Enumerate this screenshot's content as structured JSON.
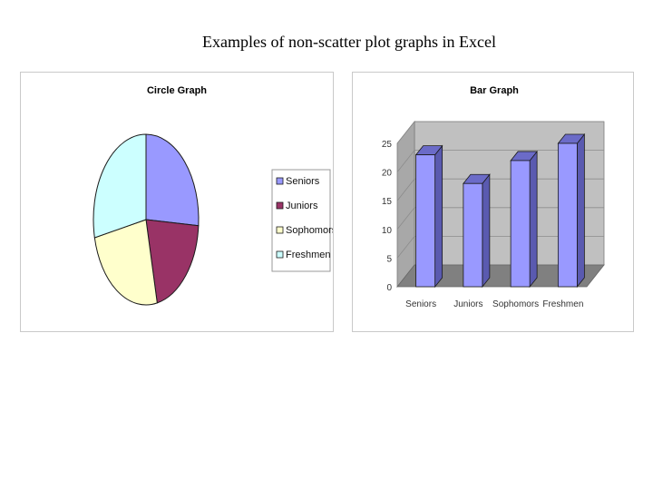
{
  "slide": {
    "title": "Examples of non-scatter plot graphs in Excel"
  },
  "chart_data": [
    {
      "type": "pie",
      "title": "Circle Graph",
      "categories": [
        "Seniors",
        "Juniors",
        "Sophomors",
        "Freshmen"
      ],
      "values": [
        23,
        18,
        22,
        25
      ],
      "colors": [
        "#9999ff",
        "#993366",
        "#ffffcc",
        "#ccffff"
      ],
      "legend_position": "right"
    },
    {
      "type": "bar",
      "title": "Bar Graph",
      "categories": [
        "Seniors",
        "Juniors",
        "Sophomors",
        "Freshmen"
      ],
      "values": [
        23,
        18,
        22,
        25
      ],
      "yticks": [
        0,
        5,
        10,
        15,
        20,
        25
      ],
      "ylim": [
        0,
        25
      ],
      "bar_color": "#9999ff",
      "bar_side_color": "#5a5ab0",
      "bar_top_color": "#6b6bc8",
      "wall_color": "#c0c0c0",
      "floor_color": "#808080",
      "grid": true,
      "style": "3d"
    }
  ]
}
